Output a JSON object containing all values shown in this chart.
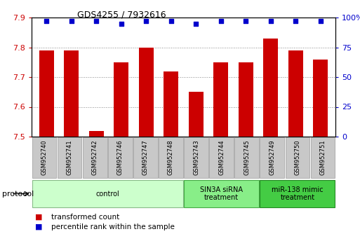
{
  "title": "GDS4255 / 7932616",
  "samples": [
    "GSM952740",
    "GSM952741",
    "GSM952742",
    "GSM952746",
    "GSM952747",
    "GSM952748",
    "GSM952743",
    "GSM952744",
    "GSM952745",
    "GSM952749",
    "GSM952750",
    "GSM952751"
  ],
  "bar_values": [
    7.79,
    7.79,
    7.52,
    7.75,
    7.8,
    7.72,
    7.65,
    7.75,
    7.75,
    7.83,
    7.79,
    7.76
  ],
  "percentile_values": [
    97,
    97,
    97,
    95,
    97,
    97,
    95,
    97,
    97,
    97,
    97,
    97
  ],
  "bar_color": "#cc0000",
  "percentile_color": "#0000cc",
  "ylim_left": [
    7.5,
    7.9
  ],
  "ylim_right": [
    0,
    100
  ],
  "yticks_left": [
    7.5,
    7.6,
    7.7,
    7.8,
    7.9
  ],
  "yticks_right": [
    0,
    25,
    50,
    75,
    100
  ],
  "ytick_labels_right": [
    "0",
    "25",
    "50",
    "75",
    "100%"
  ],
  "groups": [
    {
      "label": "control",
      "start": 0,
      "end": 6,
      "color": "#ccffcc",
      "edge_color": "#88bb88"
    },
    {
      "label": "SIN3A siRNA\ntreatment",
      "start": 6,
      "end": 9,
      "color": "#88ee88",
      "edge_color": "#44aa44"
    },
    {
      "label": "miR-138 mimic\ntreatment",
      "start": 9,
      "end": 12,
      "color": "#44cc44",
      "edge_color": "#228822"
    }
  ],
  "protocol_label": "protocol",
  "legend_bar_label": "transformed count",
  "legend_pct_label": "percentile rank within the sample",
  "grid_color": "#888888",
  "background_color": "#ffffff",
  "tick_color_left": "#cc0000",
  "tick_color_right": "#0000cc",
  "cell_color": "#c8c8c8",
  "cell_edge_color": "#999999"
}
